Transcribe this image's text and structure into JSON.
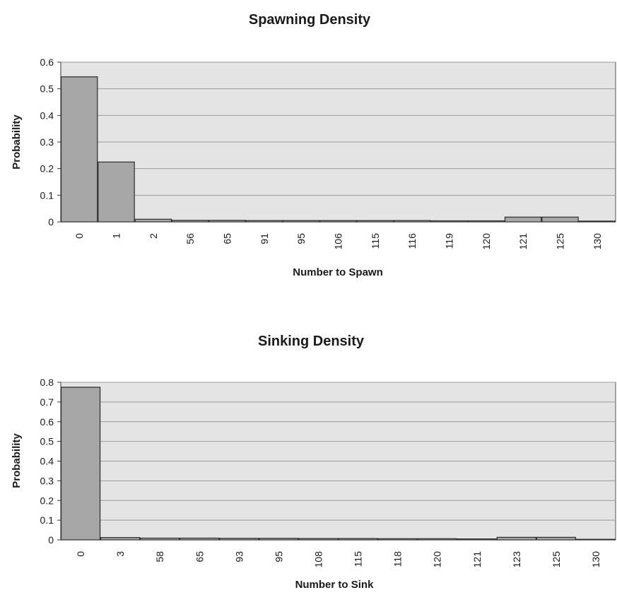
{
  "chart_data": [
    {
      "type": "bar",
      "title": "Spawning Density",
      "xlabel": "Number to Spawn",
      "ylabel": "Probability",
      "ylim": [
        0,
        0.6
      ],
      "yticks": [
        "0",
        "0.1",
        "0.2",
        "0.3",
        "0.4",
        "0.5",
        "0.6"
      ],
      "categories": [
        "0",
        "1",
        "2",
        "56",
        "65",
        "91",
        "95",
        "106",
        "115",
        "116",
        "119",
        "120",
        "121",
        "125",
        "130"
      ],
      "values": [
        0.545,
        0.225,
        0.01,
        0.006,
        0.006,
        0.005,
        0.005,
        0.005,
        0.005,
        0.005,
        0.004,
        0.004,
        0.018,
        0.018,
        0.003
      ],
      "grid": true,
      "bar_color": "#a6a6a6",
      "plot_background": "#e4e4e4"
    },
    {
      "type": "bar",
      "title": "Sinking Density",
      "xlabel": "Number to Sink",
      "ylabel": "Probability",
      "ylim": [
        0,
        0.8
      ],
      "yticks": [
        "0",
        "0.1",
        "0.2",
        "0.3",
        "0.4",
        "0.5",
        "0.6",
        "0.7",
        "0.8"
      ],
      "categories": [
        "0",
        "3",
        "58",
        "65",
        "93",
        "95",
        "108",
        "115",
        "118",
        "120",
        "121",
        "123",
        "125",
        "130"
      ],
      "values": [
        0.775,
        0.012,
        0.009,
        0.009,
        0.008,
        0.008,
        0.007,
        0.007,
        0.006,
        0.006,
        0.005,
        0.013,
        0.013,
        0.003
      ],
      "grid": true,
      "bar_color": "#a6a6a6",
      "plot_background": "#e4e4e4"
    }
  ]
}
